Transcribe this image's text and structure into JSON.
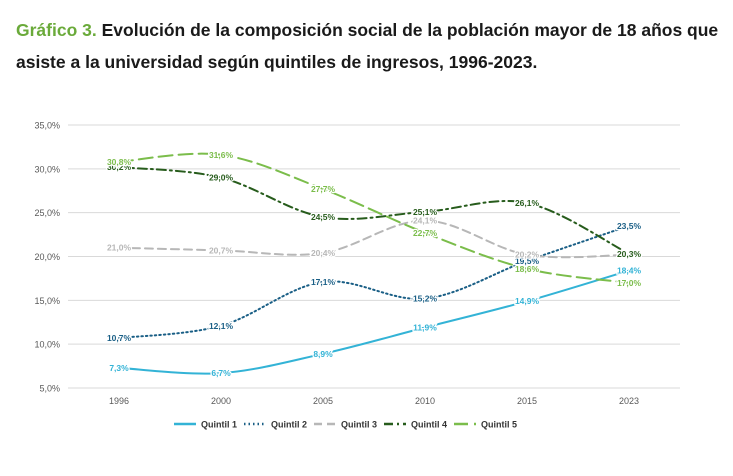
{
  "heading": {
    "label": "Gráfico 3.",
    "text": "Evolución de la composición social de la población mayor de 18 años que asiste a  la universidad  según quintiles de ingresos, 1996-2023."
  },
  "chart_data": {
    "type": "line",
    "title": "Evolución de la composición social de la población mayor de 18 años que asiste a  la universidad  según quintiles de ingresos, 1996-2023.",
    "categories": [
      "1996",
      "2000",
      "2005",
      "2010",
      "2015",
      "2023"
    ],
    "ylim": [
      5,
      35
    ],
    "yticks": [
      "5,0%",
      "10,0%",
      "15,0%",
      "20,0%",
      "25,0%",
      "30,0%",
      "35,0%"
    ],
    "grid": true,
    "legend_position": "bottom",
    "series": [
      {
        "name": "Quintil 1",
        "color": "#33b3d6",
        "style": "solid",
        "values": [
          7.3,
          6.7,
          8.9,
          11.9,
          14.9,
          18.4
        ],
        "labels": [
          "7,3%",
          "6,7%",
          "8,9%",
          "11,9%",
          "14,9%",
          "18,4%"
        ]
      },
      {
        "name": "Quintil 2",
        "color": "#1a5f86",
        "style": "dotted",
        "values": [
          10.7,
          12.1,
          17.1,
          15.2,
          19.5,
          23.5
        ],
        "labels": [
          "10,7%",
          "12,1%",
          "17,1%",
          "15,2%",
          "19,5%",
          "23,5%"
        ]
      },
      {
        "name": "Quintil 3",
        "color": "#b7b7b7",
        "style": "dashed",
        "values": [
          21.0,
          20.7,
          20.4,
          24.1,
          20.2,
          20.2
        ],
        "labels": [
          "21,0%",
          "20,7%",
          "20,4%",
          "24,1%",
          "20,2%",
          "20,2%"
        ]
      },
      {
        "name": "Quintil 4",
        "color": "#275c1c",
        "style": "dashdot",
        "values": [
          30.2,
          29.0,
          24.5,
          25.1,
          26.1,
          20.3
        ],
        "labels": [
          "30,2%",
          "29,0%",
          "24,5%",
          "25,1%",
          "26,1%",
          "20,3%"
        ]
      },
      {
        "name": "Quintil 5",
        "color": "#7bbd4b",
        "style": "longdash",
        "values": [
          30.8,
          31.6,
          27.7,
          22.7,
          18.6,
          17.0
        ],
        "labels": [
          "30,8%",
          "31,6%",
          "27,7%",
          "22,7%",
          "18,6%",
          "17,0%"
        ]
      }
    ]
  }
}
